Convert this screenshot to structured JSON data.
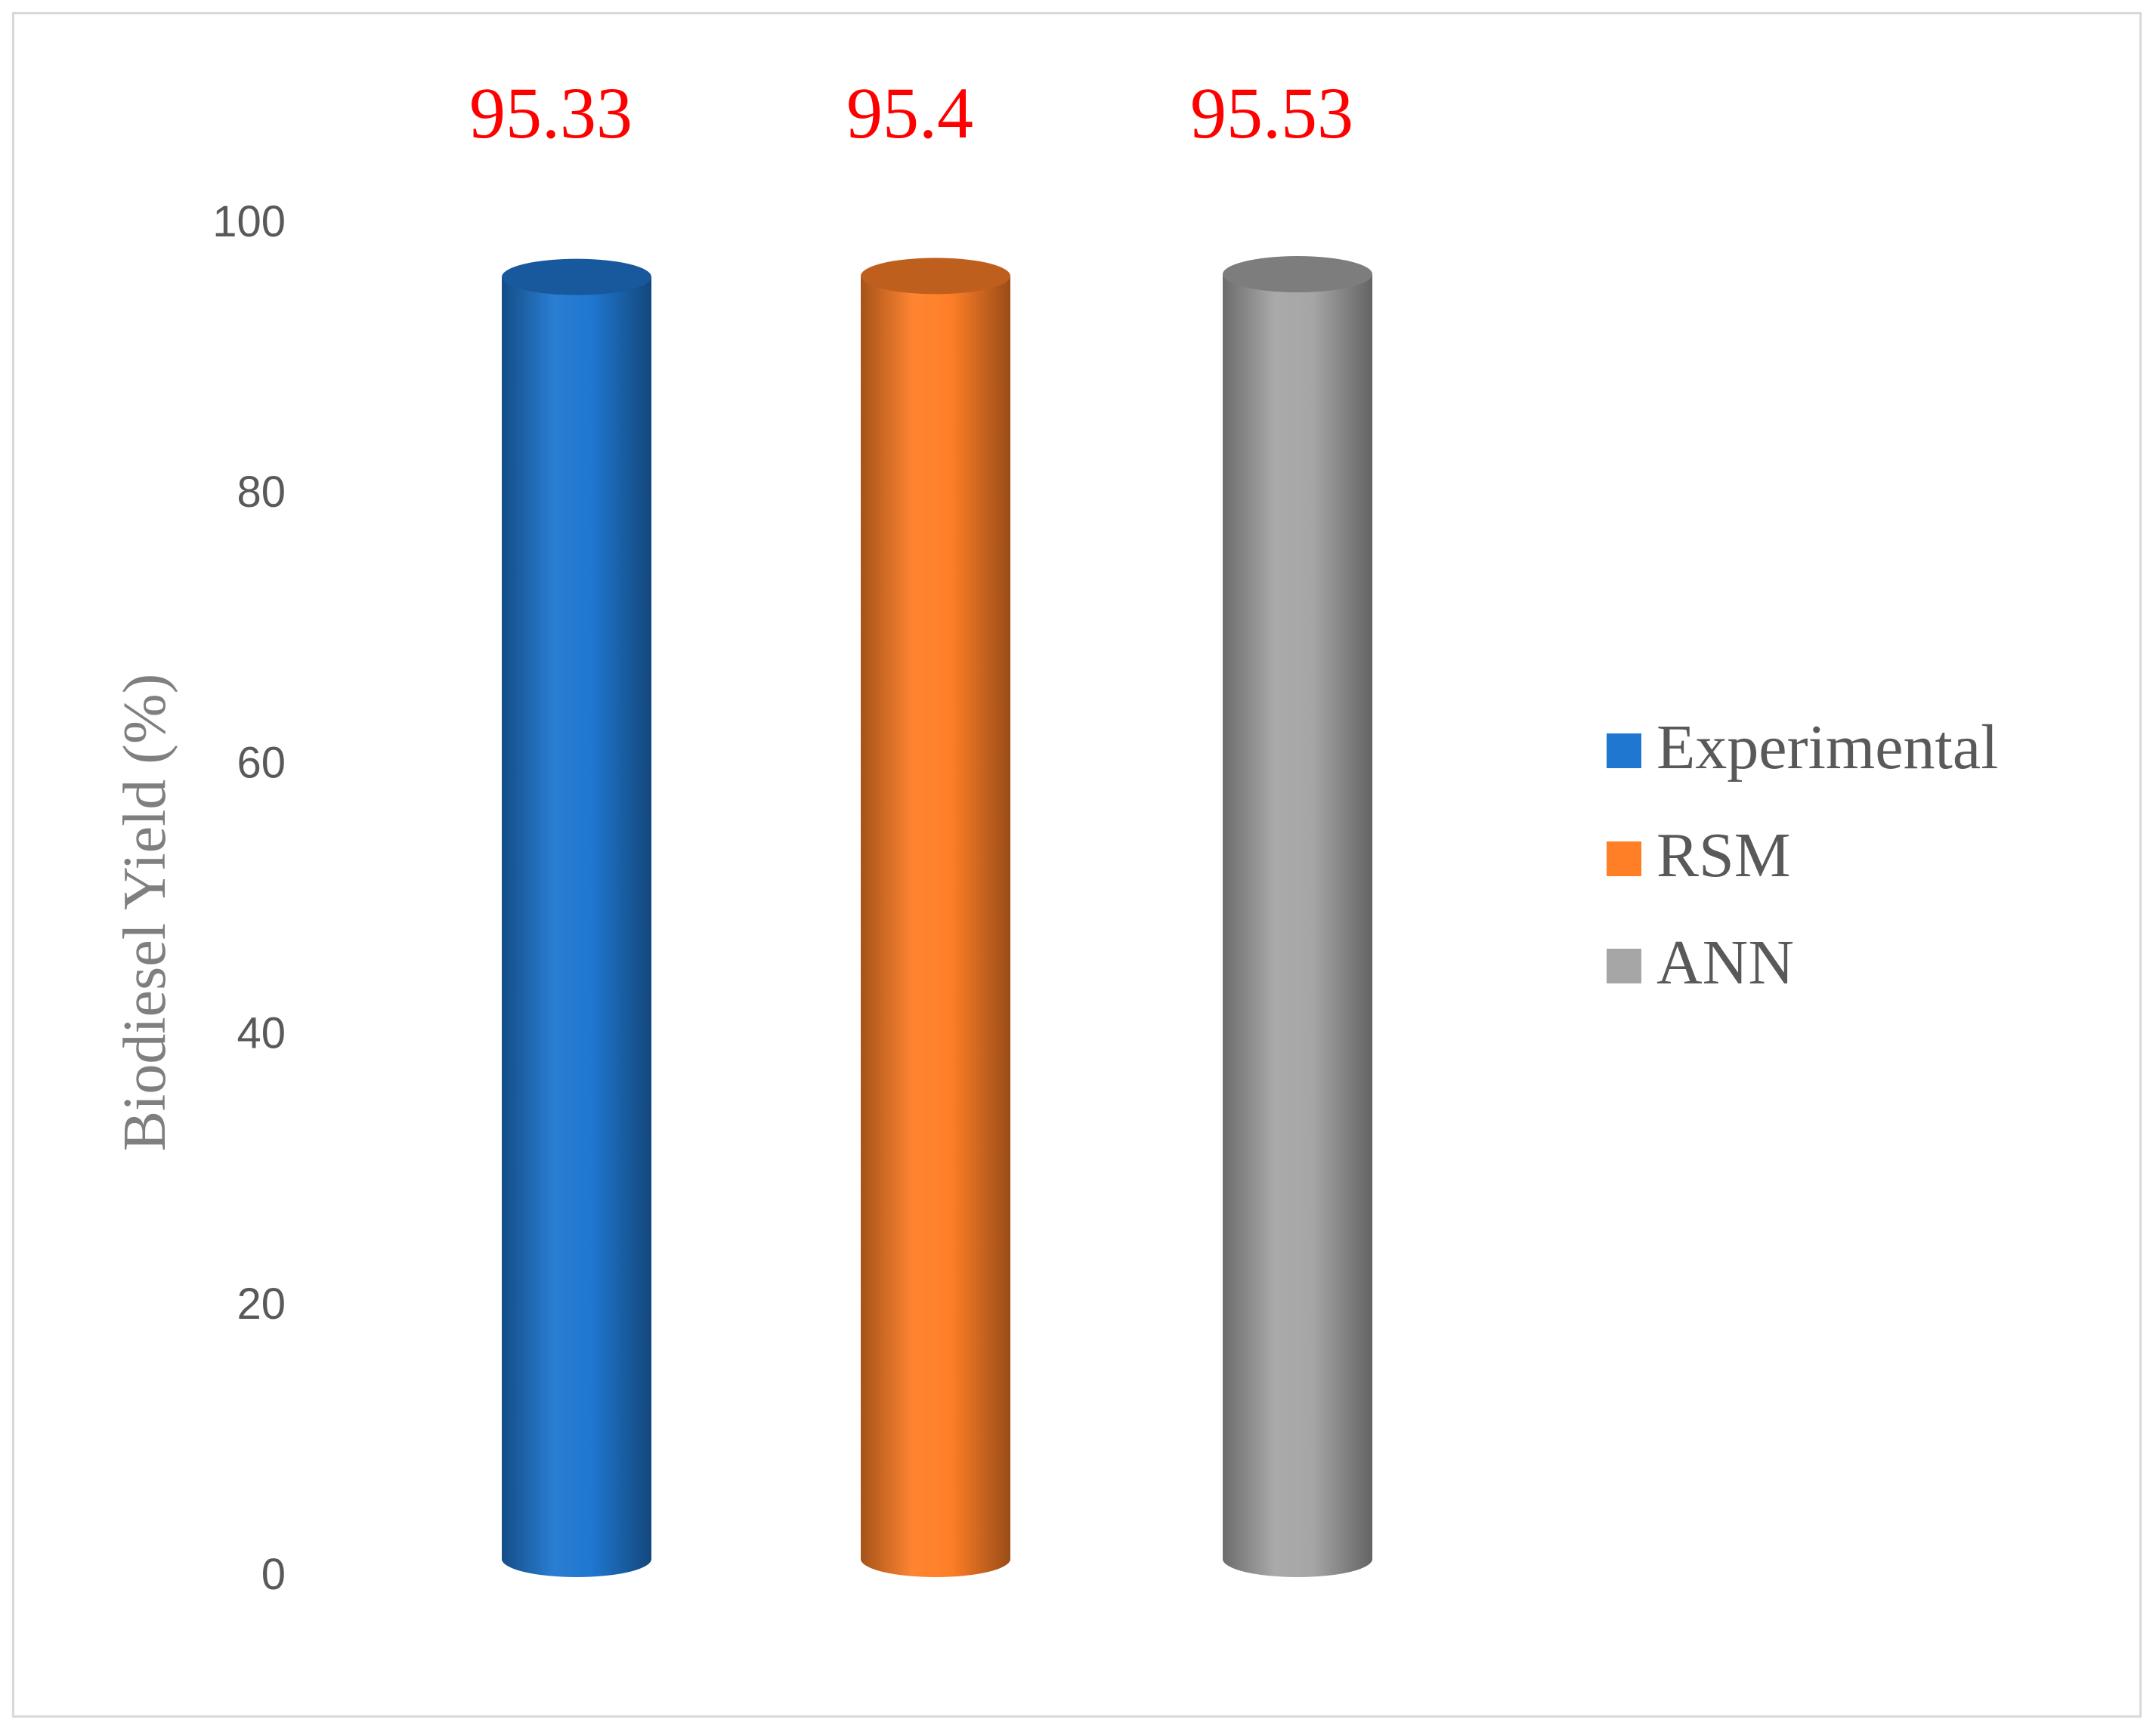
{
  "chart_data": {
    "type": "bar",
    "style": "3d-cylinder",
    "categories": [
      "Experimental",
      "RSM",
      "ANN"
    ],
    "values": [
      95.33,
      95.4,
      95.53
    ],
    "data_labels": [
      "95.33",
      "95.4",
      "95.53"
    ],
    "title": "",
    "xlabel": "",
    "ylabel": "Biodiesel Yield (%)",
    "ylim": [
      0,
      100
    ],
    "yticks": [
      0,
      20,
      40,
      60,
      80,
      100
    ],
    "grid": false,
    "legend_position": "right",
    "legend": [
      {
        "name": "Experimental",
        "color": "#1f77d0"
      },
      {
        "name": "RSM",
        "color": "#ff7f27"
      },
      {
        "name": "ANN",
        "color": "#a6a6a6"
      }
    ],
    "colors": {
      "data_label": "#ff0000",
      "tick_label": "#595959",
      "axis_title": "#7f7f7f",
      "frame": "#d9d9d9"
    }
  }
}
